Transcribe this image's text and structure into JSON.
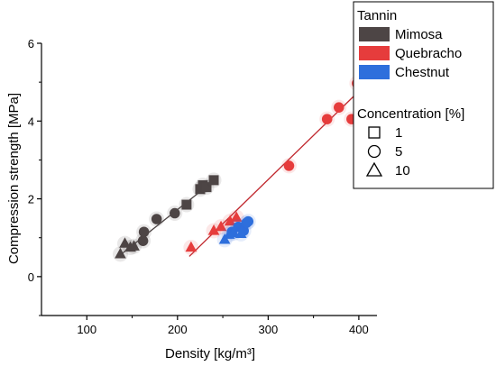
{
  "chart_data": {
    "type": "scatter",
    "title": "",
    "xlabel": "Density [kg/m³]",
    "ylabel": "Compression strength [MPa]",
    "xlim": [
      50,
      420
    ],
    "ylim": [
      -1,
      6
    ],
    "x_ticks": [
      100,
      200,
      300,
      400
    ],
    "y_ticks": [
      0,
      2,
      4,
      6
    ],
    "grid": false,
    "legend_placement": "right",
    "legend": {
      "tannin_title": "Tannin",
      "tannin_items": [
        {
          "name": "Mimosa",
          "color": "#4d4545"
        },
        {
          "name": "Quebracho",
          "color": "#e63c3c"
        },
        {
          "name": "Chestnut",
          "color": "#2e6fdc"
        }
      ],
      "concentration_title": "Concentration [%]",
      "concentration_items": [
        {
          "label": "1",
          "marker": "square"
        },
        {
          "label": "5",
          "marker": "circle"
        },
        {
          "label": "10",
          "marker": "triangle"
        }
      ]
    },
    "series": [
      {
        "tannin": "Mimosa",
        "concentration": "1",
        "marker": "square",
        "color": "#4d4545",
        "points": [
          [
            210,
            1.85
          ],
          [
            225,
            2.25
          ],
          [
            228,
            2.35
          ],
          [
            232,
            2.3
          ],
          [
            240,
            2.48
          ]
        ]
      },
      {
        "tannin": "Mimosa",
        "concentration": "5",
        "marker": "circle",
        "color": "#4d4545",
        "points": [
          [
            162,
            0.92
          ],
          [
            163,
            1.15
          ],
          [
            177,
            1.48
          ],
          [
            197,
            1.63
          ]
        ]
      },
      {
        "tannin": "Mimosa",
        "concentration": "10",
        "marker": "triangle",
        "color": "#4d4545",
        "points": [
          [
            137,
            0.58
          ],
          [
            142,
            0.85
          ],
          [
            148,
            0.75
          ],
          [
            152,
            0.78
          ]
        ]
      },
      {
        "tannin": "Quebracho",
        "concentration": "5",
        "marker": "circle",
        "color": "#e63c3c",
        "points": [
          [
            323,
            2.85
          ],
          [
            365,
            4.05
          ],
          [
            378,
            4.35
          ],
          [
            392,
            4.05
          ],
          [
            398,
            4.97
          ]
        ]
      },
      {
        "tannin": "Quebracho",
        "concentration": "10",
        "marker": "triangle",
        "color": "#e63c3c",
        "points": [
          [
            215,
            0.75
          ],
          [
            240,
            1.18
          ],
          [
            248,
            1.28
          ],
          [
            258,
            1.42
          ],
          [
            265,
            1.52
          ]
        ]
      },
      {
        "tannin": "Chestnut",
        "concentration": "5",
        "marker": "circle",
        "color": "#2e6fdc",
        "points": [
          [
            260,
            1.15
          ],
          [
            267,
            1.28
          ],
          [
            273,
            1.18
          ],
          [
            276,
            1.38
          ],
          [
            278,
            1.42
          ]
        ]
      },
      {
        "tannin": "Chestnut",
        "concentration": "10",
        "marker": "triangle",
        "color": "#2e6fdc",
        "points": [
          [
            252,
            0.95
          ],
          [
            257,
            1.08
          ],
          [
            262,
            1.12
          ],
          [
            270,
            1.1
          ]
        ]
      }
    ],
    "fit_lines": [
      {
        "tannin": "Mimosa",
        "color": "#4d4545",
        "from": [
          135,
          0.52
        ],
        "to": [
          242,
          2.5
        ]
      },
      {
        "tannin": "Quebracho",
        "color": "#c0272d",
        "from": [
          213,
          0.52
        ],
        "to": [
          398,
          4.72
        ]
      }
    ]
  }
}
